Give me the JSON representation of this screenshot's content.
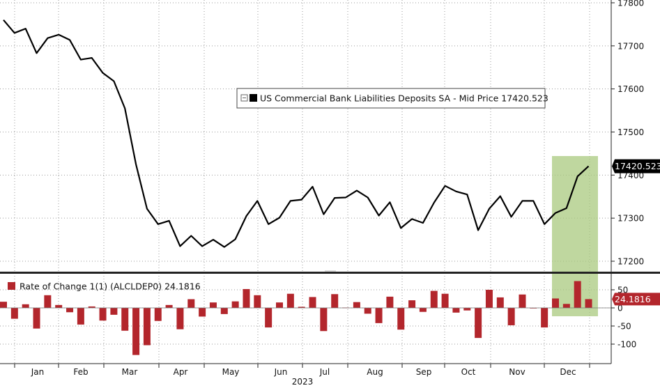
{
  "chart_data": [
    {
      "type": "line",
      "legend": "US Commercial Bank Liabilities Deposits SA - Mid Price 17420.523",
      "last_value_label": "17420.523",
      "series": [
        {
          "name": "US Commercial Bank Liabilities Deposits SA",
          "color": "#000000",
          "values": [
            17760,
            17730,
            17740,
            17683,
            17718,
            17726,
            17714,
            17668,
            17672,
            17637,
            17618,
            17555,
            17425,
            17322,
            17286,
            17294,
            17235,
            17259,
            17235,
            17250,
            17233,
            17251,
            17305,
            17340,
            17286,
            17301,
            17340,
            17343,
            17373,
            17309,
            17347,
            17348,
            17364,
            17348,
            17306,
            17337,
            17277,
            17298,
            17289,
            17336,
            17375,
            17362,
            17355,
            17272,
            17322,
            17351,
            17303,
            17340,
            17340,
            17286,
            17312,
            17323,
            17397,
            17420.523
          ]
        }
      ],
      "y_ticks": [
        "17800",
        "17700",
        "17600",
        "17500",
        "17400",
        "17300",
        "17200"
      ],
      "ylim": [
        17180,
        17800
      ],
      "grid": true,
      "highlight_color": "#a9c97f"
    },
    {
      "type": "bar",
      "legend": "Rate of Change 1(1) (ALCLDEP0) 24.1816",
      "last_value_label": "24.1816",
      "series": [
        {
          "name": "Rate of Change 1(1) (ALCLDEP0)",
          "color": "#b3262c",
          "values": [
            17,
            -30,
            10,
            -57,
            35,
            8,
            -12,
            -46,
            4,
            -35,
            -19,
            -63,
            -130,
            -103,
            -36,
            8,
            -59,
            24,
            -24,
            15,
            -17,
            18,
            52,
            35,
            -54,
            15,
            39,
            3,
            30,
            -64,
            38,
            1,
            16,
            -16,
            -42,
            31,
            -60,
            21,
            -11,
            47,
            39,
            -13,
            -7,
            -83,
            50,
            29,
            -48,
            37,
            0,
            -54,
            26,
            11,
            74,
            24.1816
          ]
        }
      ],
      "y_ticks": [
        "50",
        "0",
        "-50",
        "-100"
      ],
      "ylim": [
        -150,
        90
      ],
      "grid": true
    }
  ],
  "x_axis": {
    "months": [
      "Jan",
      "Feb",
      "Mar",
      "Apr",
      "May",
      "Jun",
      "Jul",
      "Aug",
      "Sep",
      "Oct",
      "Nov",
      "Dec"
    ],
    "year": "2023"
  },
  "colors": {
    "line": "#000000",
    "bars": "#b3262c",
    "highlight": "#a9c97f",
    "grid": "#9a9a9a"
  }
}
